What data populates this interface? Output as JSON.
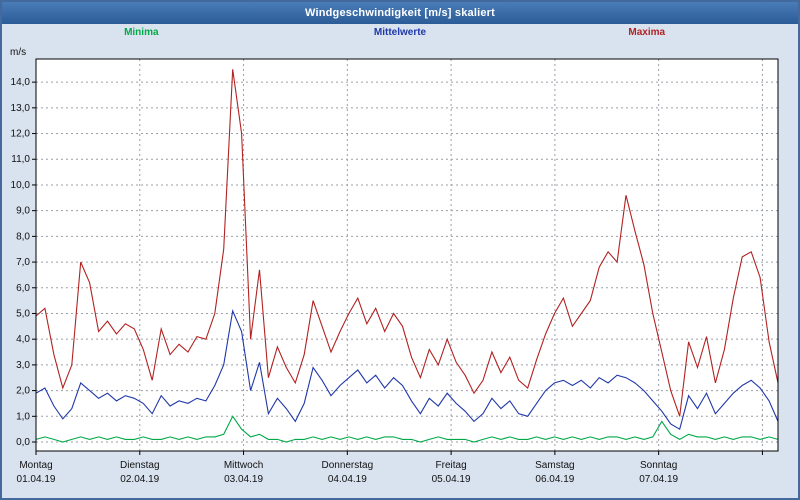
{
  "window": {
    "title": "Windgeschwindigkeit [m/s] skaliert"
  },
  "chart_data": {
    "type": "line",
    "title": "Windgeschwindigkeit [m/s] skaliert",
    "y_unit": "m/s",
    "ylim": [
      0,
      14
    ],
    "y_tick_step": 1.0,
    "grid": "dashed",
    "legend_position": "top",
    "sample_interval_hours": 2,
    "points_per_day": 12,
    "x_days": [
      {
        "name": "Montag",
        "date": "01.04.19"
      },
      {
        "name": "Dienstag",
        "date": "02.04.19"
      },
      {
        "name": "Mittwoch",
        "date": "03.04.19"
      },
      {
        "name": "Donnerstag",
        "date": "04.04.19"
      },
      {
        "name": "Freitag",
        "date": "05.04.19"
      },
      {
        "name": "Samstag",
        "date": "06.04.19"
      },
      {
        "name": "Sonntag",
        "date": "07.04.19"
      }
    ],
    "legend": [
      {
        "label": "Minima",
        "color": "#00a848"
      },
      {
        "label": "Mittelwerte",
        "color": "#2038a8"
      },
      {
        "label": "Maxima",
        "color": "#b22222"
      }
    ],
    "series": [
      {
        "name": "Minima",
        "color": "#00a848",
        "values": [
          0.1,
          0.2,
          0.1,
          0.0,
          0.1,
          0.2,
          0.1,
          0.2,
          0.1,
          0.2,
          0.1,
          0.1,
          0.2,
          0.1,
          0.1,
          0.2,
          0.1,
          0.2,
          0.1,
          0.2,
          0.2,
          0.3,
          1.0,
          0.5,
          0.2,
          0.3,
          0.1,
          0.1,
          0.0,
          0.1,
          0.1,
          0.2,
          0.1,
          0.2,
          0.1,
          0.2,
          0.1,
          0.2,
          0.1,
          0.2,
          0.2,
          0.1,
          0.1,
          0.0,
          0.1,
          0.2,
          0.1,
          0.1,
          0.1,
          0.0,
          0.1,
          0.2,
          0.1,
          0.2,
          0.1,
          0.1,
          0.2,
          0.1,
          0.2,
          0.1,
          0.2,
          0.1,
          0.2,
          0.1,
          0.2,
          0.2,
          0.1,
          0.2,
          0.1,
          0.2,
          0.8,
          0.3,
          0.1,
          0.3,
          0.2,
          0.2,
          0.1,
          0.2,
          0.1,
          0.2,
          0.2,
          0.1,
          0.2,
          0.1
        ]
      },
      {
        "name": "Mittelwerte",
        "color": "#2038a8",
        "values": [
          1.9,
          2.1,
          1.4,
          0.9,
          1.3,
          2.3,
          2.0,
          1.7,
          1.9,
          1.6,
          1.8,
          1.7,
          1.5,
          1.1,
          1.8,
          1.4,
          1.6,
          1.5,
          1.7,
          1.6,
          2.2,
          3.0,
          5.1,
          4.3,
          2.0,
          3.1,
          1.1,
          1.7,
          1.3,
          0.8,
          1.5,
          2.9,
          2.4,
          1.8,
          2.2,
          2.5,
          2.8,
          2.3,
          2.6,
          2.1,
          2.5,
          2.2,
          1.6,
          1.1,
          1.7,
          1.4,
          1.9,
          1.5,
          1.2,
          0.8,
          1.1,
          1.7,
          1.3,
          1.6,
          1.1,
          1.0,
          1.5,
          2.0,
          2.3,
          2.4,
          2.2,
          2.4,
          2.1,
          2.5,
          2.3,
          2.6,
          2.5,
          2.3,
          2.0,
          1.6,
          1.2,
          0.7,
          0.5,
          1.8,
          1.3,
          1.9,
          1.1,
          1.5,
          1.9,
          2.2,
          2.4,
          2.1,
          1.6,
          0.8
        ]
      },
      {
        "name": "Maxima",
        "color": "#b22222",
        "values": [
          4.9,
          5.2,
          3.4,
          2.1,
          3.0,
          7.0,
          6.2,
          4.3,
          4.7,
          4.2,
          4.6,
          4.4,
          3.6,
          2.4,
          4.4,
          3.4,
          3.8,
          3.5,
          4.1,
          4.0,
          5.0,
          7.5,
          14.5,
          12.0,
          4.0,
          6.7,
          2.5,
          3.7,
          2.9,
          2.3,
          3.4,
          5.5,
          4.5,
          3.5,
          4.3,
          5.0,
          5.6,
          4.6,
          5.2,
          4.3,
          5.0,
          4.5,
          3.3,
          2.5,
          3.6,
          3.0,
          4.0,
          3.1,
          2.6,
          1.9,
          2.4,
          3.5,
          2.7,
          3.3,
          2.4,
          2.1,
          3.2,
          4.2,
          5.0,
          5.6,
          4.5,
          5.0,
          5.5,
          6.8,
          7.4,
          7.0,
          9.6,
          8.2,
          6.9,
          5.0,
          3.5,
          2.0,
          1.0,
          3.9,
          2.9,
          4.1,
          2.3,
          3.6,
          5.6,
          7.2,
          7.4,
          6.4,
          3.9,
          2.3
        ]
      }
    ]
  }
}
